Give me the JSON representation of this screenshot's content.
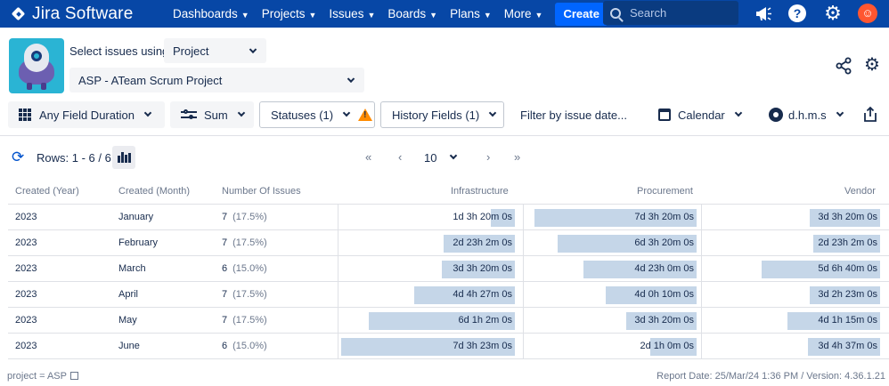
{
  "nav": {
    "brand": "Jira Software",
    "items": [
      "Dashboards",
      "Projects",
      "Issues",
      "Boards",
      "Plans",
      "More"
    ],
    "create": "Create",
    "search_placeholder": "Search"
  },
  "header": {
    "select_label": "Select issues using",
    "source_value": "Project",
    "project_value": "ASP - ATeam Scrum Project"
  },
  "toolbar": {
    "field_duration": "Any Field Duration",
    "aggregation": "Sum",
    "statuses": "Statuses (1)",
    "history_fields": "History Fields (1)",
    "filter_date": "Filter by issue date...",
    "calendar": "Calendar",
    "time_format": "d.h.m.s"
  },
  "pagination": {
    "rows_label": "Rows: 1 - 6 / 6",
    "first": "«",
    "prev": "‹",
    "page_size": "10",
    "next": "›",
    "last": "»"
  },
  "table": {
    "headers": [
      "Created (Year)",
      "Created (Month)",
      "Number Of Issues",
      "Infrastructure",
      "Procurement",
      "Vendor"
    ],
    "rows": [
      {
        "year": "2023",
        "month": "January",
        "count": "7",
        "pct": "(17.5%)",
        "infra": "1d 3h 20m 0s",
        "proc": "7d 3h 20m 0s",
        "vendor": "3d 3h 20m 0s",
        "infra_frac": 0.14,
        "proc_frac": 0.95,
        "vendor_frac": 0.41
      },
      {
        "year": "2023",
        "month": "February",
        "count": "7",
        "pct": "(17.5%)",
        "infra": "2d 23h 2m 0s",
        "proc": "6d 3h 20m 0s",
        "vendor": "2d 23h 2m 0s",
        "infra_frac": 0.41,
        "proc_frac": 0.81,
        "vendor_frac": 0.39
      },
      {
        "year": "2023",
        "month": "March",
        "count": "6",
        "pct": "(15.0%)",
        "infra": "3d 3h 20m 0s",
        "proc": "4d 23h 0m 0s",
        "vendor": "5d 6h 40m 0s",
        "infra_frac": 0.42,
        "proc_frac": 0.66,
        "vendor_frac": 0.69
      },
      {
        "year": "2023",
        "month": "April",
        "count": "7",
        "pct": "(17.5%)",
        "infra": "4d 4h 27m 0s",
        "proc": "4d 0h 10m 0s",
        "vendor": "3d 2h 23m 0s",
        "infra_frac": 0.58,
        "proc_frac": 0.53,
        "vendor_frac": 0.41
      },
      {
        "year": "2023",
        "month": "May",
        "count": "7",
        "pct": "(17.5%)",
        "infra": "6d 1h 2m 0s",
        "proc": "3d 3h 20m 0s",
        "vendor": "4d 1h 15m 0s",
        "infra_frac": 0.84,
        "proc_frac": 0.41,
        "vendor_frac": 0.54
      },
      {
        "year": "2023",
        "month": "June",
        "count": "6",
        "pct": "(15.0%)",
        "infra": "7d 3h 23m 0s",
        "proc": "2d 1h 0m 0s",
        "vendor": "3d 4h 37m 0s",
        "infra_frac": 1.0,
        "proc_frac": 0.27,
        "vendor_frac": 0.42
      }
    ]
  },
  "footer": {
    "jql": "project = ASP",
    "report_info": "Report Date: 25/Mar/24 1:36 PM / Version: 4.36.1.21"
  }
}
